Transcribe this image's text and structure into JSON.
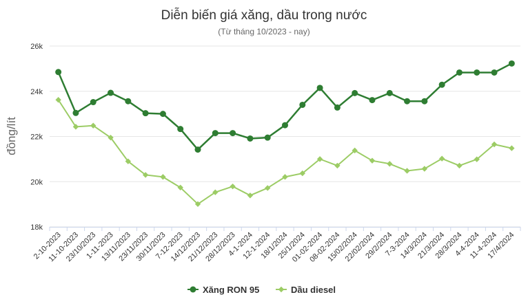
{
  "chart_data": {
    "type": "line",
    "title": "Diễn biến giá xăng, dầu trong nước",
    "subtitle": "(Từ tháng 10/2023 - nay)",
    "xlabel": "",
    "ylabel": "đồng/lít",
    "ylim": [
      18000,
      26000
    ],
    "yticks": [
      {
        "value": 18000,
        "label": "18k"
      },
      {
        "value": 20000,
        "label": "20k"
      },
      {
        "value": 22000,
        "label": "22k"
      },
      {
        "value": 24000,
        "label": "24k"
      },
      {
        "value": 26000,
        "label": "26k"
      }
    ],
    "grid": true,
    "legend_position": "bottom",
    "categories": [
      "2-10-2023",
      "11-10-2023",
      "23/10/2023",
      "1-11-2023",
      "13/11/2023",
      "23/11/2023",
      "30/11/2023",
      "7-12-2023",
      "14/12/2023",
      "21/12/2023",
      "28/12/2023",
      "4-1-2024",
      "12-1-2024",
      "18/1/2024",
      "25/1/2024",
      "01-02-2024",
      "08-02-2024",
      "15/02/2024",
      "22/02/2024",
      "29/2/2024",
      "7-3-2024",
      "14/3/2024",
      "21/3/2024",
      "28/3/2024",
      "4-4-2024",
      "11-4-2024",
      "17/4/2024"
    ],
    "series": [
      {
        "name": "Xăng RON 95",
        "color": "#2e7d32",
        "values": [
          24850,
          23040,
          23520,
          23930,
          23560,
          23030,
          23000,
          22330,
          21420,
          22150,
          22150,
          21910,
          21950,
          22500,
          23400,
          24150,
          23280,
          23920,
          23610,
          23920,
          23560,
          23560,
          24290,
          24830,
          24830,
          24830,
          25230
        ]
      },
      {
        "name": "Dầu diesel",
        "color": "#9ccc65",
        "values": [
          23620,
          22430,
          22480,
          21950,
          20900,
          20300,
          20210,
          19740,
          19010,
          19530,
          19790,
          19390,
          19720,
          20210,
          20370,
          21000,
          20710,
          21380,
          20930,
          20790,
          20480,
          20570,
          21020,
          20710,
          20990,
          21650,
          21480
        ]
      }
    ]
  }
}
